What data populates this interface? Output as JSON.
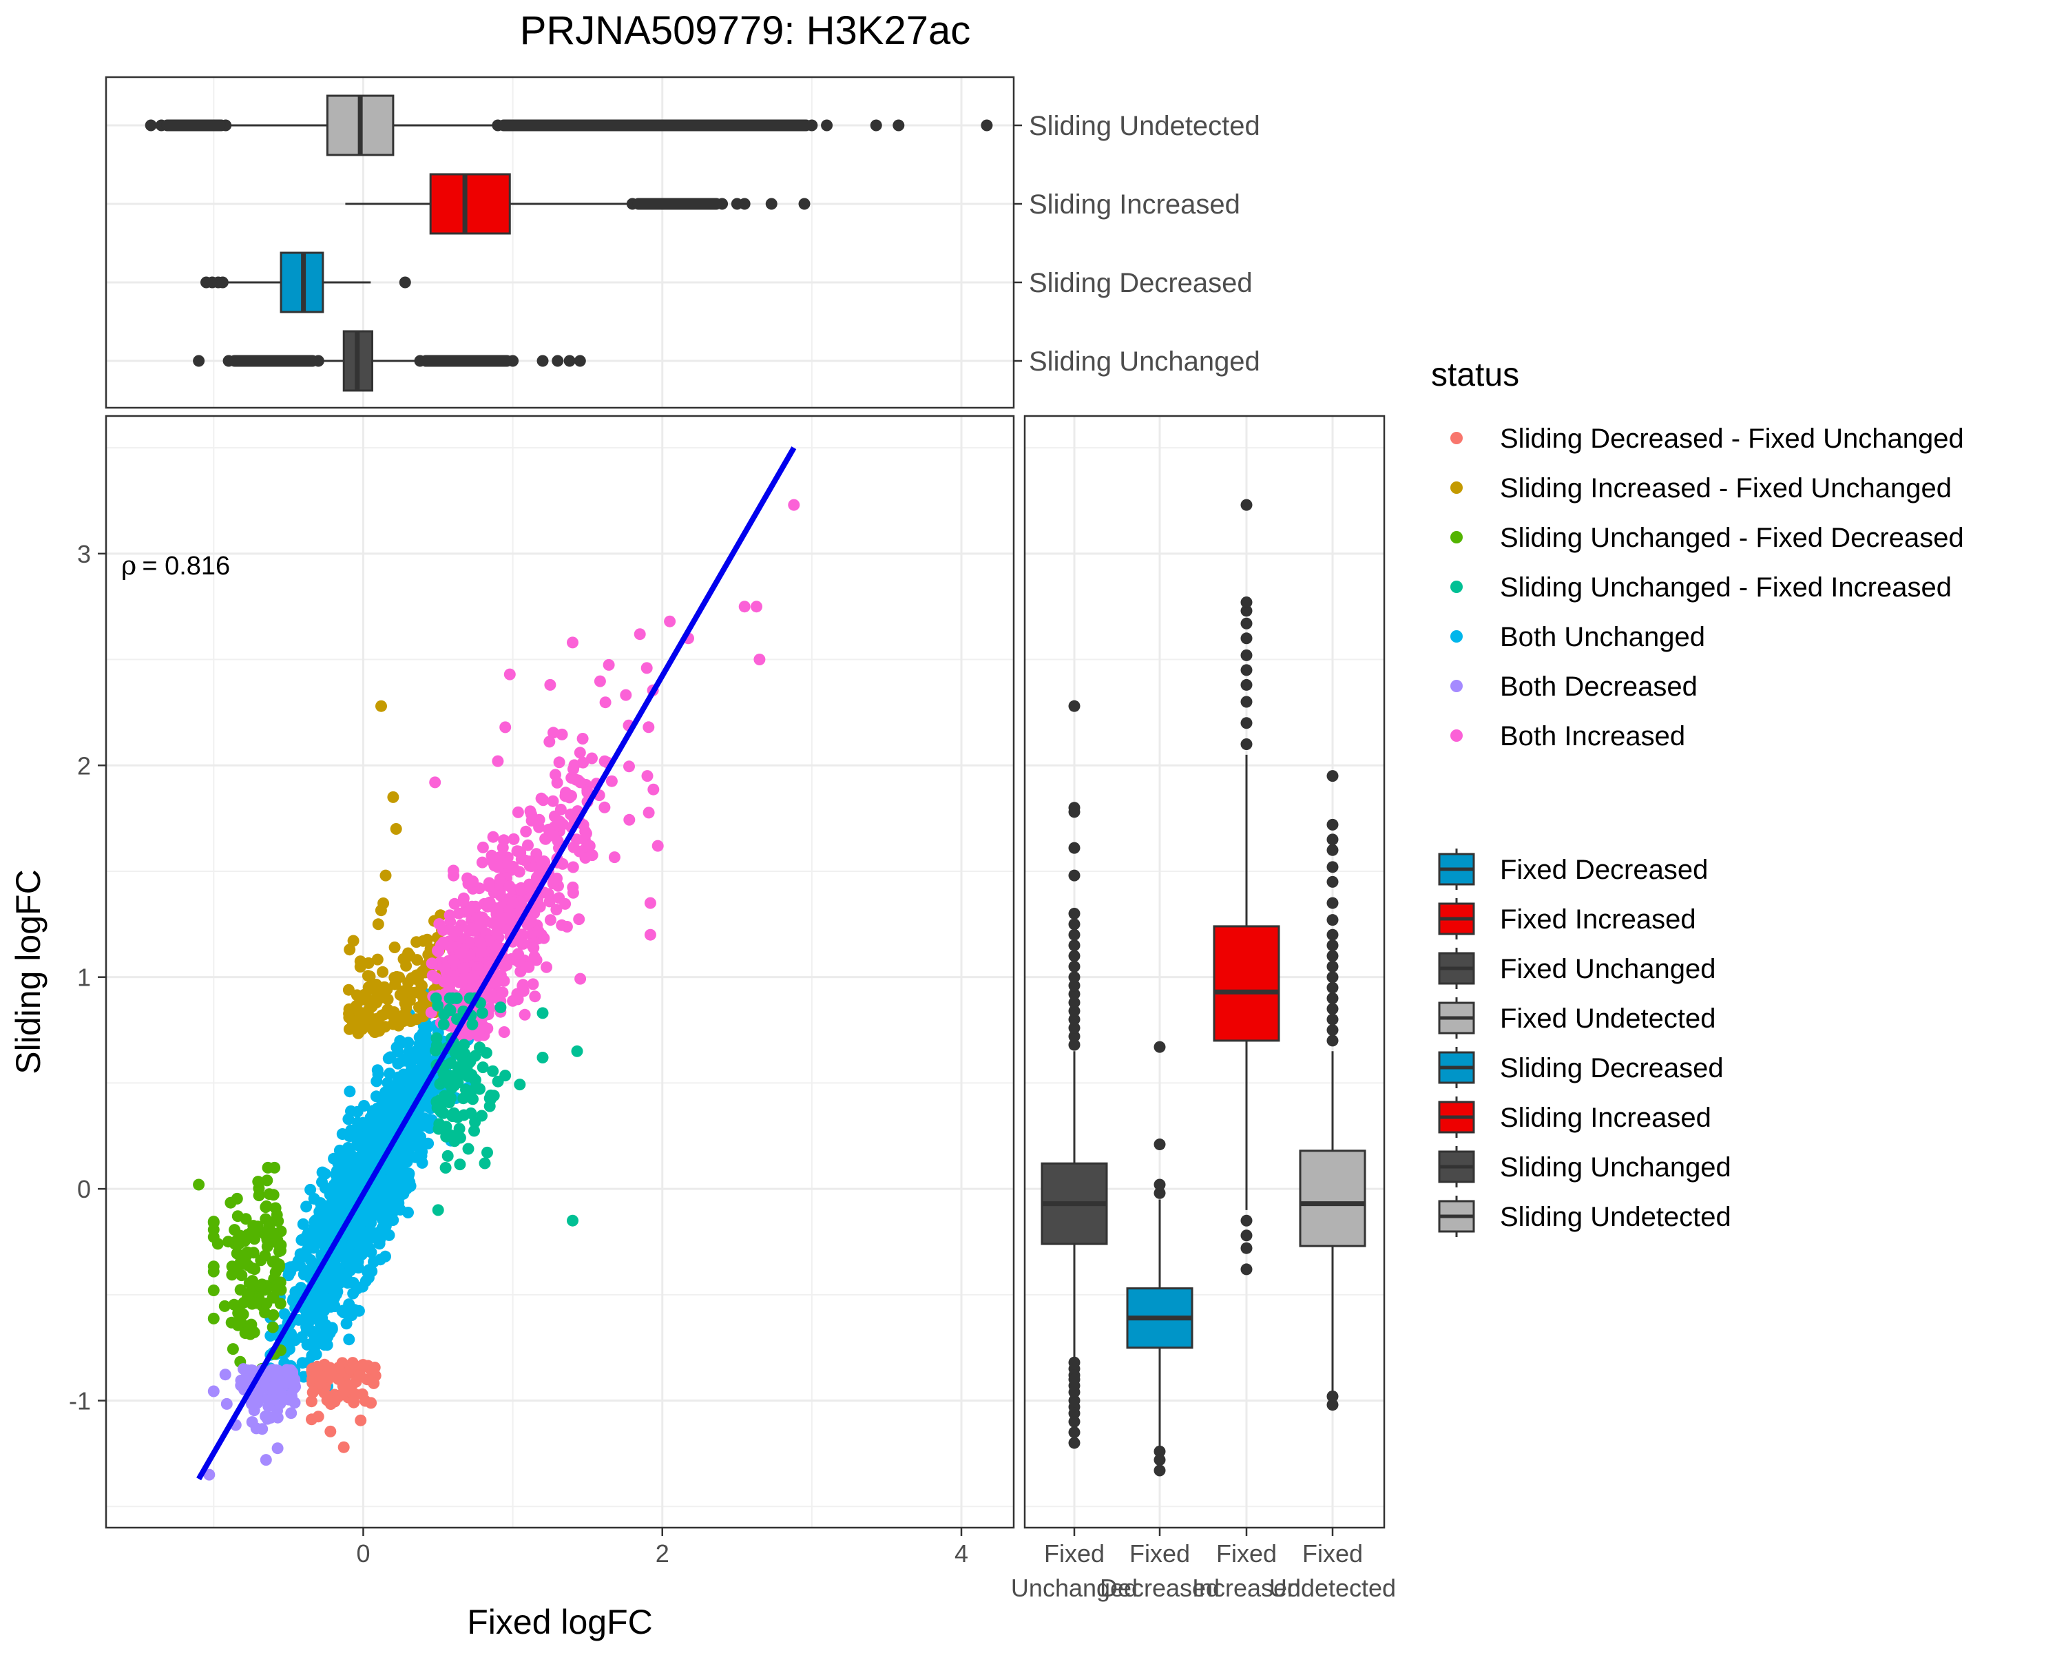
{
  "title": "PRJNA509779: H3K27ac",
  "annotation": {
    "symbol": "ρ",
    "text": "= 0.816"
  },
  "colors": {
    "Sliding Decreased - Fixed Unchanged": "#F8766D",
    "Sliding Increased - Fixed Unchanged": "#C49A00",
    "Sliding Unchanged - Fixed Decreased": "#53B400",
    "Sliding Unchanged - Fixed Increased": "#00C094",
    "Both Unchanged": "#00B6EB",
    "Both Decreased": "#A58AFF",
    "Both Increased": "#FB61D7",
    "Decreased": "#0095C8",
    "Increased": "#EE0000",
    "Unchanged": "#4A4A4A",
    "Undetected": "#B2B2B2",
    "fit_line": "#0000EE"
  },
  "legend": {
    "status_title": "status",
    "status_items": [
      "Sliding Decreased - Fixed Unchanged",
      "Sliding Increased - Fixed Unchanged",
      "Sliding Unchanged - Fixed Decreased",
      "Sliding Unchanged - Fixed Increased",
      "Both Unchanged",
      "Both Decreased",
      "Both Increased"
    ],
    "box_items": [
      {
        "label": "Fixed Decreased",
        "cls": "Decreased"
      },
      {
        "label": "Fixed Increased",
        "cls": "Increased"
      },
      {
        "label": "Fixed Unchanged",
        "cls": "Unchanged"
      },
      {
        "label": "Fixed Undetected",
        "cls": "Undetected"
      },
      {
        "label": "Sliding Decreased",
        "cls": "Decreased"
      },
      {
        "label": "Sliding Increased",
        "cls": "Increased"
      },
      {
        "label": "Sliding Unchanged",
        "cls": "Unchanged"
      },
      {
        "label": "Sliding Undetected",
        "cls": "Undetected"
      }
    ]
  },
  "chart_data": [
    {
      "type": "scatter",
      "panel": "main",
      "xlabel": "Fixed logFC",
      "ylabel": "Sliding logFC",
      "xlim": [
        -1.72,
        4.35
      ],
      "ylim": [
        -1.6,
        3.65
      ],
      "xticks": [
        0,
        2,
        4
      ],
      "yticks": [
        -1,
        0,
        1,
        2,
        3
      ],
      "grid": true,
      "series_summary": [
        {
          "name": "Both Unchanged",
          "x_range": [
            -0.65,
            0.75
          ],
          "y_range": [
            -1.05,
            0.95
          ]
        },
        {
          "name": "Both Increased",
          "x_range": [
            0.5,
            2.9
          ],
          "y_range": [
            0.7,
            3.23
          ]
        },
        {
          "name": "Both Decreased",
          "x_range": [
            -1.03,
            -0.4
          ],
          "y_range": [
            -1.35,
            -0.75
          ]
        },
        {
          "name": "Sliding Increased - Fixed Unchanged",
          "x_range": [
            -0.15,
            0.6
          ],
          "y_range": [
            0.7,
            2.28
          ]
        },
        {
          "name": "Sliding Decreased - Fixed Unchanged",
          "x_range": [
            -0.4,
            0.15
          ],
          "y_range": [
            -1.22,
            -0.75
          ]
        },
        {
          "name": "Sliding Unchanged - Fixed Decreased",
          "x_range": [
            -1.1,
            -0.45
          ],
          "y_range": [
            -0.85,
            0.02
          ]
        },
        {
          "name": "Sliding Unchanged - Fixed Increased",
          "x_range": [
            0.45,
            1.45
          ],
          "y_range": [
            -0.15,
            0.9
          ]
        }
      ],
      "points": [
        {
          "x": 2.88,
          "y": 3.23,
          "s": "Both Increased"
        },
        {
          "x": 2.63,
          "y": 2.75,
          "s": "Both Increased"
        },
        {
          "x": 2.55,
          "y": 2.75,
          "s": "Both Increased"
        },
        {
          "x": 2.65,
          "y": 2.5,
          "s": "Both Increased"
        },
        {
          "x": 1.85,
          "y": 2.62,
          "s": "Both Increased"
        },
        {
          "x": 2.05,
          "y": 2.68,
          "s": "Both Increased"
        },
        {
          "x": 1.4,
          "y": 2.58,
          "s": "Both Increased"
        },
        {
          "x": 0.98,
          "y": 2.43,
          "s": "Both Increased"
        },
        {
          "x": 1.25,
          "y": 2.38,
          "s": "Both Increased"
        },
        {
          "x": 0.95,
          "y": 2.18,
          "s": "Both Increased"
        },
        {
          "x": 1.45,
          "y": 2.06,
          "s": "Both Increased"
        },
        {
          "x": 0.9,
          "y": 2.02,
          "s": "Both Increased"
        },
        {
          "x": 0.48,
          "y": 1.92,
          "s": "Both Increased"
        },
        {
          "x": 1.9,
          "y": 1.95,
          "s": "Both Increased"
        },
        {
          "x": 1.97,
          "y": 1.62,
          "s": "Both Increased"
        },
        {
          "x": 1.92,
          "y": 1.35,
          "s": "Both Increased"
        },
        {
          "x": 1.92,
          "y": 1.2,
          "s": "Both Increased"
        },
        {
          "x": 0.12,
          "y": 2.28,
          "s": "Sliding Increased - Fixed Unchanged"
        },
        {
          "x": 0.2,
          "y": 1.85,
          "s": "Sliding Increased - Fixed Unchanged"
        },
        {
          "x": 0.22,
          "y": 1.7,
          "s": "Sliding Increased - Fixed Unchanged"
        },
        {
          "x": 0.15,
          "y": 1.48,
          "s": "Sliding Increased - Fixed Unchanged"
        },
        {
          "x": -1.1,
          "y": 0.02,
          "s": "Sliding Unchanged - Fixed Decreased"
        },
        {
          "x": 1.4,
          "y": -0.15,
          "s": "Sliding Unchanged - Fixed Increased"
        },
        {
          "x": 1.43,
          "y": 0.65,
          "s": "Sliding Unchanged - Fixed Increased"
        },
        {
          "x": 1.2,
          "y": 0.62,
          "s": "Sliding Unchanged - Fixed Increased"
        },
        {
          "x": 1.2,
          "y": 0.83,
          "s": "Sliding Unchanged - Fixed Increased"
        },
        {
          "x": -1.03,
          "y": -1.35,
          "s": "Both Decreased"
        },
        {
          "x": -0.65,
          "y": -1.28,
          "s": "Both Decreased"
        },
        {
          "x": -0.13,
          "y": -1.22,
          "s": "Sliding Decreased - Fixed Unchanged"
        }
      ],
      "fit_line": {
        "x": [
          -1.1,
          2.88
        ],
        "y": [
          -1.37,
          3.5
        ]
      }
    },
    {
      "type": "boxplot",
      "panel": "top",
      "orientation": "horizontal",
      "xlim": [
        -1.72,
        4.35
      ],
      "categories": [
        "Sliding Undetected",
        "Sliding Increased",
        "Sliding Decreased",
        "Sliding Unchanged"
      ],
      "boxes": [
        {
          "name": "Sliding Undetected",
          "cls": "Undetected",
          "q1": -0.24,
          "median": -0.02,
          "q3": 0.2,
          "whisker_lo": -0.9,
          "whisker_hi": 0.88,
          "outliers_lo": [
            -1.42,
            -1.35,
            -1.3,
            -1.15,
            -1.1,
            -1.06,
            -1.02,
            -0.98,
            -0.95,
            -0.92
          ],
          "outliers_hi": [
            0.9,
            0.95,
            1.0,
            1.1,
            1.2,
            1.3,
            1.4,
            1.5,
            1.6,
            1.7,
            1.8,
            1.9,
            2.0,
            2.1,
            2.2,
            2.3,
            2.4,
            2.5,
            2.6,
            2.7,
            2.8,
            2.9,
            3.0,
            3.1,
            3.43,
            3.58,
            4.17
          ]
        },
        {
          "name": "Sliding Increased",
          "cls": "Increased",
          "q1": 0.45,
          "median": 0.68,
          "q3": 0.98,
          "whisker_lo": -0.12,
          "whisker_hi": 1.78,
          "outliers_lo": [],
          "outliers_hi": [
            1.8,
            1.85,
            1.9,
            1.95,
            2.0,
            2.05,
            2.1,
            2.15,
            2.2,
            2.25,
            2.3,
            2.4,
            2.5,
            2.55,
            2.73,
            2.95
          ]
        },
        {
          "name": "Sliding Decreased",
          "cls": "Decreased",
          "q1": -0.55,
          "median": -0.4,
          "q3": -0.27,
          "whisker_lo": -0.92,
          "whisker_hi": 0.05,
          "outliers_lo": [
            -1.05,
            -1.01,
            -0.97,
            -0.94
          ],
          "outliers_hi": [
            0.28
          ]
        },
        {
          "name": "Sliding Unchanged",
          "cls": "Unchanged",
          "q1": -0.13,
          "median": -0.04,
          "q3": 0.06,
          "whisker_lo": -0.8,
          "whisker_hi": 0.35,
          "outliers_lo": [
            -1.1,
            -0.9,
            -0.85,
            -0.82,
            -0.8,
            -0.75,
            -0.7,
            -0.65,
            -0.6,
            -0.55,
            -0.5,
            -0.45,
            -0.4,
            -0.35,
            -0.3
          ],
          "outliers_hi": [
            0.38,
            0.42,
            0.46,
            0.5,
            0.55,
            0.6,
            0.65,
            0.7,
            0.75,
            0.8,
            0.85,
            0.9,
            0.95,
            1.0,
            1.2,
            1.3,
            1.38,
            1.45
          ]
        }
      ]
    },
    {
      "type": "boxplot",
      "panel": "right",
      "orientation": "vertical",
      "ylim": [
        -1.6,
        3.65
      ],
      "categories": [
        "Fixed Unchanged",
        "Fixed Decreased",
        "Fixed Increased",
        "Fixed Undetected"
      ],
      "boxes": [
        {
          "name": "Fixed Unchanged",
          "cls": "Unchanged",
          "q1": -0.26,
          "median": -0.07,
          "q3": 0.12,
          "whisker_lo": -0.8,
          "whisker_hi": 0.65,
          "outliers_lo": [
            -0.82,
            -0.85,
            -0.88,
            -0.9,
            -0.93,
            -0.96,
            -1.0,
            -1.03,
            -1.06,
            -1.1,
            -1.15,
            -1.2
          ],
          "outliers_hi": [
            0.68,
            0.72,
            0.76,
            0.8,
            0.84,
            0.88,
            0.92,
            0.96,
            1.0,
            1.05,
            1.1,
            1.15,
            1.2,
            1.25,
            1.3,
            1.48,
            1.61,
            1.78,
            1.8,
            2.28
          ]
        },
        {
          "name": "Fixed Decreased",
          "cls": "Decreased",
          "q1": -0.75,
          "median": -0.61,
          "q3": -0.47,
          "whisker_lo": -1.22,
          "whisker_hi": -0.05,
          "outliers_lo": [
            -1.24,
            -1.28,
            -1.33
          ],
          "outliers_hi": [
            -0.02,
            0.02,
            0.21,
            0.67
          ]
        },
        {
          "name": "Fixed Increased",
          "cls": "Increased",
          "q1": 0.7,
          "median": 0.93,
          "q3": 1.24,
          "whisker_lo": -0.1,
          "whisker_hi": 2.05,
          "outliers_lo": [
            -0.15,
            -0.22,
            -0.28,
            -0.38
          ],
          "outliers_hi": [
            2.1,
            2.2,
            2.3,
            2.38,
            2.45,
            2.52,
            2.6,
            2.67,
            2.73,
            2.77,
            3.23
          ]
        },
        {
          "name": "Fixed Undetected",
          "cls": "Undetected",
          "q1": -0.27,
          "median": -0.07,
          "q3": 0.18,
          "whisker_lo": -0.97,
          "whisker_hi": 0.65,
          "outliers_lo": [
            -0.98,
            -1.02
          ],
          "outliers_hi": [
            0.7,
            0.75,
            0.8,
            0.85,
            0.9,
            0.95,
            1.0,
            1.05,
            1.1,
            1.15,
            1.2,
            1.27,
            1.35,
            1.45,
            1.52,
            1.6,
            1.65,
            1.72,
            1.95
          ]
        }
      ],
      "xtick_labels": [
        [
          "Fixed",
          "Unchanged"
        ],
        [
          "Fixed",
          "Decreased"
        ],
        [
          "Fixed",
          "Increased"
        ],
        [
          "Fixed",
          "Undetected"
        ]
      ]
    }
  ]
}
